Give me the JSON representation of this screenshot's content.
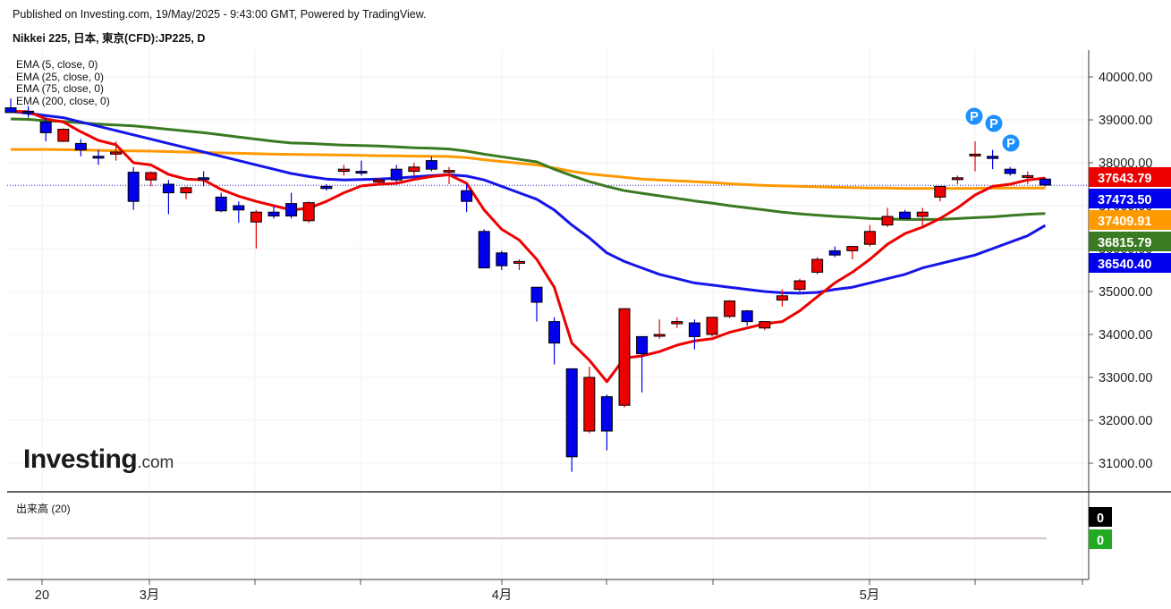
{
  "header": {
    "published": "Published on Investing.com, 19/May/2025 - 9:43:00 GMT, Powered by TradingView.",
    "instrument": "Nikkei 225, 日本, 東京(CFD):JP225, D"
  },
  "legend": [
    "EMA (5, close, 0)",
    "EMA (25, close, 0)",
    "EMA (75, close, 0)",
    "EMA (200, close, 0)"
  ],
  "volume_title": "出来高 (20)",
  "logo": {
    "main": "Investing",
    "suffix": ".com"
  },
  "colors": {
    "up": "#ee0000",
    "down": "#0000ee",
    "ema5": "#ee0000",
    "ema25": "#1515e8",
    "ema75": "#3a7a22",
    "ema200": "#ff9900"
  },
  "chart_data": {
    "type": "candlestick",
    "y_axis_ticks": [
      "40000.00",
      "39000.00",
      "38000.00",
      "37000.00",
      "36000.00",
      "35000.00",
      "34000.00",
      "33000.00",
      "32000.00",
      "31000.00"
    ],
    "ylim": [
      30300,
      40600
    ],
    "x_axis_labels": [
      "20",
      "3月",
      "4月",
      "5月"
    ],
    "last_values": [
      {
        "label": "37643.79",
        "value": 37643.79,
        "color": "#ee0000"
      },
      {
        "label": "37473.50",
        "value": 37473.5,
        "color": "#0000ee"
      },
      {
        "label": "37409.91",
        "value": 37409.91,
        "color": "#ff9900"
      },
      {
        "label": "36815.79",
        "value": 36815.79,
        "color": "#3a7a22"
      },
      {
        "label": "36540.40",
        "value": 36540.4,
        "color": "#0000ee"
      }
    ],
    "current_price_line": 37473.5,
    "candles": [
      {
        "o": 39280,
        "h": 39500,
        "l": 39180,
        "c": 39170
      },
      {
        "o": 39200,
        "h": 39320,
        "l": 39050,
        "c": 39180
      },
      {
        "o": 38950,
        "h": 39050,
        "l": 38500,
        "c": 38700
      },
      {
        "o": 38500,
        "h": 38800,
        "l": 38480,
        "c": 38780
      },
      {
        "o": 38450,
        "h": 38550,
        "l": 38150,
        "c": 38300
      },
      {
        "o": 38150,
        "h": 38300,
        "l": 37950,
        "c": 38130
      },
      {
        "o": 38200,
        "h": 38500,
        "l": 38050,
        "c": 38250
      },
      {
        "o": 37780,
        "h": 37900,
        "l": 36900,
        "c": 37100
      },
      {
        "o": 37600,
        "h": 37800,
        "l": 37450,
        "c": 37770
      },
      {
        "o": 37500,
        "h": 37600,
        "l": 36800,
        "c": 37300
      },
      {
        "o": 37300,
        "h": 37450,
        "l": 37150,
        "c": 37420
      },
      {
        "o": 37650,
        "h": 37800,
        "l": 37450,
        "c": 37620
      },
      {
        "o": 37200,
        "h": 37300,
        "l": 36850,
        "c": 36880
      },
      {
        "o": 37000,
        "h": 37100,
        "l": 36600,
        "c": 36900
      },
      {
        "o": 36620,
        "h": 36900,
        "l": 36000,
        "c": 36850
      },
      {
        "o": 36850,
        "h": 37000,
        "l": 36700,
        "c": 36760
      },
      {
        "o": 37050,
        "h": 37300,
        "l": 36700,
        "c": 36760
      },
      {
        "o": 36650,
        "h": 37100,
        "l": 36600,
        "c": 37070
      },
      {
        "o": 37450,
        "h": 37500,
        "l": 37350,
        "c": 37400
      },
      {
        "o": 37800,
        "h": 37950,
        "l": 37700,
        "c": 37850
      },
      {
        "o": 37800,
        "h": 38050,
        "l": 37700,
        "c": 37780
      },
      {
        "o": 37550,
        "h": 37650,
        "l": 37500,
        "c": 37600
      },
      {
        "o": 37850,
        "h": 37950,
        "l": 37550,
        "c": 37600
      },
      {
        "o": 37800,
        "h": 38000,
        "l": 37700,
        "c": 37900
      },
      {
        "o": 38050,
        "h": 38150,
        "l": 37800,
        "c": 37850
      },
      {
        "o": 37800,
        "h": 37900,
        "l": 37500,
        "c": 37820
      },
      {
        "o": 37350,
        "h": 37500,
        "l": 36850,
        "c": 37100
      },
      {
        "o": 36400,
        "h": 36450,
        "l": 35550,
        "c": 35550
      },
      {
        "o": 35900,
        "h": 35950,
        "l": 35500,
        "c": 35600
      },
      {
        "o": 35700,
        "h": 35750,
        "l": 35500,
        "c": 35700
      },
      {
        "o": 35100,
        "h": 35100,
        "l": 34300,
        "c": 34750
      },
      {
        "o": 34300,
        "h": 34400,
        "l": 33300,
        "c": 33800
      },
      {
        "o": 33200,
        "h": 33200,
        "l": 30800,
        "c": 31150
      },
      {
        "o": 31750,
        "h": 33250,
        "l": 31700,
        "c": 33000
      },
      {
        "o": 32550,
        "h": 32600,
        "l": 31300,
        "c": 31750
      },
      {
        "o": 32350,
        "h": 34600,
        "l": 32300,
        "c": 34600
      },
      {
        "o": 33950,
        "h": 33950,
        "l": 32650,
        "c": 33550
      },
      {
        "o": 33980,
        "h": 34350,
        "l": 33900,
        "c": 34000
      },
      {
        "o": 34250,
        "h": 34400,
        "l": 34150,
        "c": 34300
      },
      {
        "o": 34270,
        "h": 34350,
        "l": 33650,
        "c": 33950
      },
      {
        "o": 34000,
        "h": 34400,
        "l": 33950,
        "c": 34400
      },
      {
        "o": 34420,
        "h": 34800,
        "l": 34380,
        "c": 34780
      },
      {
        "o": 34550,
        "h": 34570,
        "l": 34200,
        "c": 34300
      },
      {
        "o": 34150,
        "h": 34300,
        "l": 34100,
        "c": 34300
      },
      {
        "o": 34800,
        "h": 35050,
        "l": 34650,
        "c": 34900
      },
      {
        "o": 35050,
        "h": 35300,
        "l": 35000,
        "c": 35250
      },
      {
        "o": 35450,
        "h": 35800,
        "l": 35400,
        "c": 35750
      },
      {
        "o": 35950,
        "h": 36050,
        "l": 35800,
        "c": 35850
      },
      {
        "o": 35950,
        "h": 36050,
        "l": 35750,
        "c": 36050
      },
      {
        "o": 36100,
        "h": 36550,
        "l": 36050,
        "c": 36400
      },
      {
        "o": 36550,
        "h": 36950,
        "l": 36500,
        "c": 36750
      },
      {
        "o": 36850,
        "h": 36900,
        "l": 36700,
        "c": 36700
      },
      {
        "o": 36750,
        "h": 36950,
        "l": 36500,
        "c": 36850
      },
      {
        "o": 37200,
        "h": 37450,
        "l": 37100,
        "c": 37450
      },
      {
        "o": 37650,
        "h": 37700,
        "l": 37500,
        "c": 37650
      },
      {
        "o": 38200,
        "h": 38500,
        "l": 37800,
        "c": 38200
      },
      {
        "o": 38150,
        "h": 38300,
        "l": 37850,
        "c": 38100
      },
      {
        "o": 37850,
        "h": 37900,
        "l": 37700,
        "c": 37750
      },
      {
        "o": 37700,
        "h": 37800,
        "l": 37500,
        "c": 37700
      },
      {
        "o": 37620,
        "h": 37650,
        "l": 37450,
        "c": 37480
      }
    ],
    "series": [
      {
        "name": "EMA (5, close, 0)",
        "color": "#ee0000",
        "values": [
          39200,
          39190,
          39020,
          38950,
          38720,
          38520,
          38420,
          38000,
          37950,
          37730,
          37620,
          37600,
          37380,
          37220,
          37100,
          37000,
          36900,
          36940,
          37100,
          37300,
          37460,
          37500,
          37520,
          37610,
          37680,
          37720,
          37520,
          36900,
          36450,
          36200,
          35750,
          35100,
          33800,
          33400,
          32900,
          33450,
          33500,
          33600,
          33750,
          33850,
          33900,
          34050,
          34150,
          34250,
          34300,
          34550,
          34880,
          35200,
          35450,
          35750,
          36100,
          36350,
          36500,
          36700,
          36950,
          37250,
          37450,
          37500,
          37600,
          37643.79
        ]
      },
      {
        "name": "EMA (25, close, 0)",
        "color": "#1515e8",
        "values": [
          39200,
          39150,
          39100,
          39050,
          38950,
          38850,
          38750,
          38650,
          38550,
          38450,
          38350,
          38250,
          38150,
          38050,
          37950,
          37850,
          37750,
          37680,
          37620,
          37600,
          37610,
          37620,
          37640,
          37670,
          37700,
          37720,
          37690,
          37600,
          37450,
          37300,
          37150,
          36900,
          36550,
          36250,
          35900,
          35700,
          35550,
          35400,
          35300,
          35200,
          35150,
          35100,
          35050,
          35000,
          34970,
          34960,
          34980,
          35050,
          35100,
          35200,
          35300,
          35400,
          35550,
          35650,
          35750,
          35850,
          36000,
          36150,
          36300,
          36540.4
        ]
      },
      {
        "name": "EMA (75, close, 0)",
        "color": "#3a7a22",
        "values": [
          39020,
          39010,
          38980,
          38960,
          38930,
          38900,
          38880,
          38860,
          38820,
          38780,
          38740,
          38700,
          38650,
          38600,
          38550,
          38500,
          38460,
          38450,
          38430,
          38410,
          38400,
          38390,
          38370,
          38350,
          38340,
          38320,
          38270,
          38200,
          38140,
          38080,
          38020,
          37850,
          37700,
          37560,
          37450,
          37350,
          37290,
          37230,
          37170,
          37110,
          37060,
          37000,
          36950,
          36900,
          36850,
          36810,
          36780,
          36750,
          36730,
          36700,
          36690,
          36680,
          36680,
          36680,
          36700,
          36720,
          36740,
          36770,
          36800,
          36815.79
        ]
      },
      {
        "name": "EMA (200, close, 0)",
        "color": "#ff9900",
        "values": [
          38310,
          38310,
          38310,
          38305,
          38300,
          38290,
          38280,
          38275,
          38270,
          38260,
          38250,
          38240,
          38230,
          38220,
          38210,
          38200,
          38195,
          38190,
          38185,
          38180,
          38170,
          38165,
          38160,
          38155,
          38150,
          38145,
          38120,
          38070,
          38030,
          37990,
          37950,
          37880,
          37800,
          37740,
          37700,
          37660,
          37620,
          37600,
          37580,
          37560,
          37540,
          37510,
          37490,
          37470,
          37460,
          37450,
          37440,
          37430,
          37420,
          37410,
          37410,
          37400,
          37400,
          37400,
          37400,
          37405,
          37410,
          37410,
          37410,
          37409.91
        ]
      }
    ],
    "volume": {
      "series_name": "出来高 (20)",
      "last_values": [
        {
          "label": "0",
          "color": "#000000"
        },
        {
          "label": "0",
          "color": "#22aa22"
        }
      ]
    },
    "markers": [
      {
        "label": "P",
        "index": 56
      },
      {
        "label": "P",
        "index": 57
      },
      {
        "label": "P",
        "index": 58
      }
    ]
  }
}
